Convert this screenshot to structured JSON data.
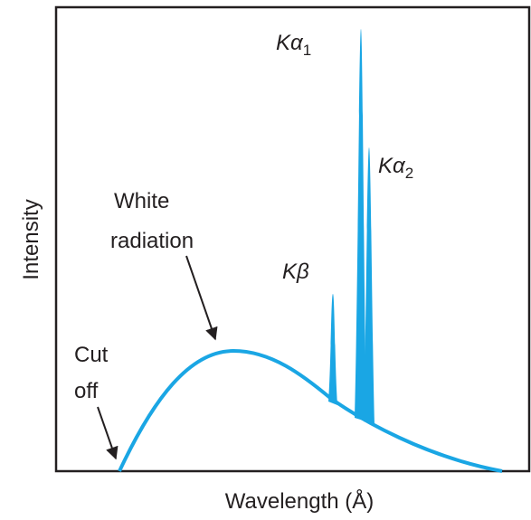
{
  "axes": {
    "y_label": "Intensity",
    "x_label": "Wavelength (Å)"
  },
  "annotations": {
    "white_radiation": [
      "White",
      "radiation"
    ],
    "cut_off": [
      "Cut",
      "off"
    ]
  },
  "peaks": [
    {
      "letter": "K",
      "greek": "α",
      "subscript": "1"
    },
    {
      "letter": "K",
      "greek": "α",
      "subscript": "2"
    },
    {
      "letter": "K",
      "greek": "β"
    }
  ]
}
